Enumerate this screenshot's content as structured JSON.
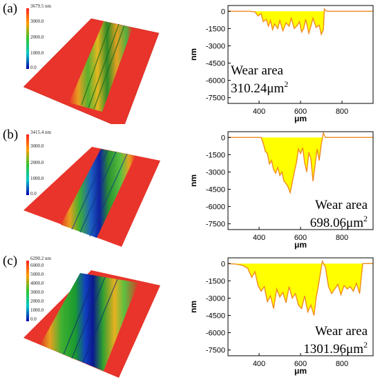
{
  "panels": [
    {
      "label": "(a)",
      "colorbar": {
        "max_label": "3679.5 nm",
        "ticks": [
          "3000.0",
          "2000.0",
          "1000.0",
          "0.0"
        ]
      },
      "wear_title": "Wear area",
      "wear_value": "310.24μm",
      "wear_exp": "2",
      "annotation_position": "bottom-left"
    },
    {
      "label": "(b)",
      "colorbar": {
        "max_label": "3415.4 nm",
        "ticks": [
          "3000.0",
          "2000.0",
          "1000.0",
          "0.0"
        ]
      },
      "wear_title": "Wear area",
      "wear_value": "698.06μm",
      "wear_exp": "2",
      "annotation_position": "bottom-right"
    },
    {
      "label": "(c)",
      "colorbar": {
        "max_label": "6290.2 nm",
        "ticks": [
          "6000.0",
          "5000.0",
          "4000.0",
          "3000.0",
          "2000.0",
          "1000.0",
          "0.0"
        ]
      },
      "wear_title": "Wear area",
      "wear_value": "1301.96μm",
      "wear_exp": "2",
      "annotation_position": "bottom-right"
    }
  ],
  "chart_data": [
    {
      "type": "area",
      "xlabel": "μm",
      "ylabel": "nm",
      "xlim": [
        250,
        950
      ],
      "ylim": [
        -8000,
        500
      ],
      "xticks": [
        400,
        600,
        800
      ],
      "yticks": [
        0,
        -1500,
        -3000,
        -4500,
        -6000,
        -7500
      ],
      "fill_color": "#ffff00",
      "line_color": "#f08a1c",
      "x": [
        250,
        350,
        380,
        395,
        410,
        420,
        435,
        445,
        455,
        465,
        475,
        490,
        500,
        515,
        530,
        545,
        555,
        570,
        585,
        595,
        605,
        615,
        625,
        640,
        650,
        660,
        675,
        690,
        700,
        710,
        715,
        725,
        800,
        950
      ],
      "y": [
        0,
        0,
        -50,
        -400,
        -200,
        -900,
        -700,
        -1300,
        -800,
        -1600,
        -1100,
        -1500,
        -800,
        -1700,
        -1000,
        -1300,
        -600,
        -1500,
        -1200,
        -900,
        -1800,
        -1500,
        -700,
        -1900,
        -1300,
        -600,
        -1400,
        -1200,
        -2000,
        -1600,
        200,
        0,
        0,
        0
      ]
    },
    {
      "type": "area",
      "xlabel": "μm",
      "ylabel": "nm",
      "xlim": [
        250,
        950
      ],
      "ylim": [
        -8000,
        500
      ],
      "xticks": [
        400,
        600,
        800
      ],
      "yticks": [
        0,
        -1500,
        -3000,
        -4500,
        -6000,
        -7500
      ],
      "fill_color": "#ffff00",
      "line_color": "#f08a1c",
      "x": [
        250,
        410,
        420,
        430,
        440,
        450,
        460,
        470,
        480,
        490,
        500,
        510,
        520,
        530,
        540,
        550,
        560,
        570,
        580,
        590,
        600,
        610,
        620,
        630,
        640,
        650,
        660,
        670,
        680,
        690,
        700,
        710,
        720,
        950
      ],
      "y": [
        0,
        0,
        -500,
        -1200,
        -1400,
        -2300,
        -2000,
        -2800,
        -3100,
        -2600,
        -3300,
        -3000,
        -3800,
        -4000,
        -4300,
        -4800,
        -3900,
        -3000,
        -2200,
        -1000,
        -1400,
        -900,
        -2200,
        -3000,
        -1300,
        -1900,
        -3800,
        -2400,
        -1000,
        -2000,
        -600,
        400,
        0,
        0
      ]
    },
    {
      "type": "area",
      "xlabel": "μm",
      "ylabel": "nm",
      "xlim": [
        250,
        950
      ],
      "ylim": [
        -8000,
        500
      ],
      "xticks": [
        400,
        600,
        800
      ],
      "yticks": [
        0,
        -1500,
        -3000,
        -4500,
        -6000,
        -7500
      ],
      "fill_color": "#ffff00",
      "line_color": "#f08a1c",
      "x": [
        250,
        290,
        320,
        345,
        365,
        380,
        395,
        410,
        425,
        440,
        455,
        470,
        485,
        500,
        515,
        530,
        545,
        560,
        575,
        590,
        605,
        620,
        635,
        650,
        665,
        675,
        690,
        705,
        720,
        735,
        750,
        765,
        780,
        795,
        810,
        825,
        840,
        855,
        870,
        885,
        900,
        950
      ],
      "y": [
        0,
        -50,
        -150,
        -400,
        -1200,
        -700,
        -1900,
        -2400,
        -2000,
        -3300,
        -2800,
        -3900,
        -2200,
        -2900,
        -2500,
        -3400,
        -2000,
        -3000,
        -2600,
        -3600,
        -3900,
        -2800,
        -4200,
        -3600,
        -4500,
        -3000,
        -1500,
        200,
        -300,
        -2000,
        -2600,
        -2200,
        -1800,
        -2700,
        -1900,
        -2200,
        -2000,
        -2400,
        -1700,
        -2600,
        0,
        0
      ]
    }
  ]
}
